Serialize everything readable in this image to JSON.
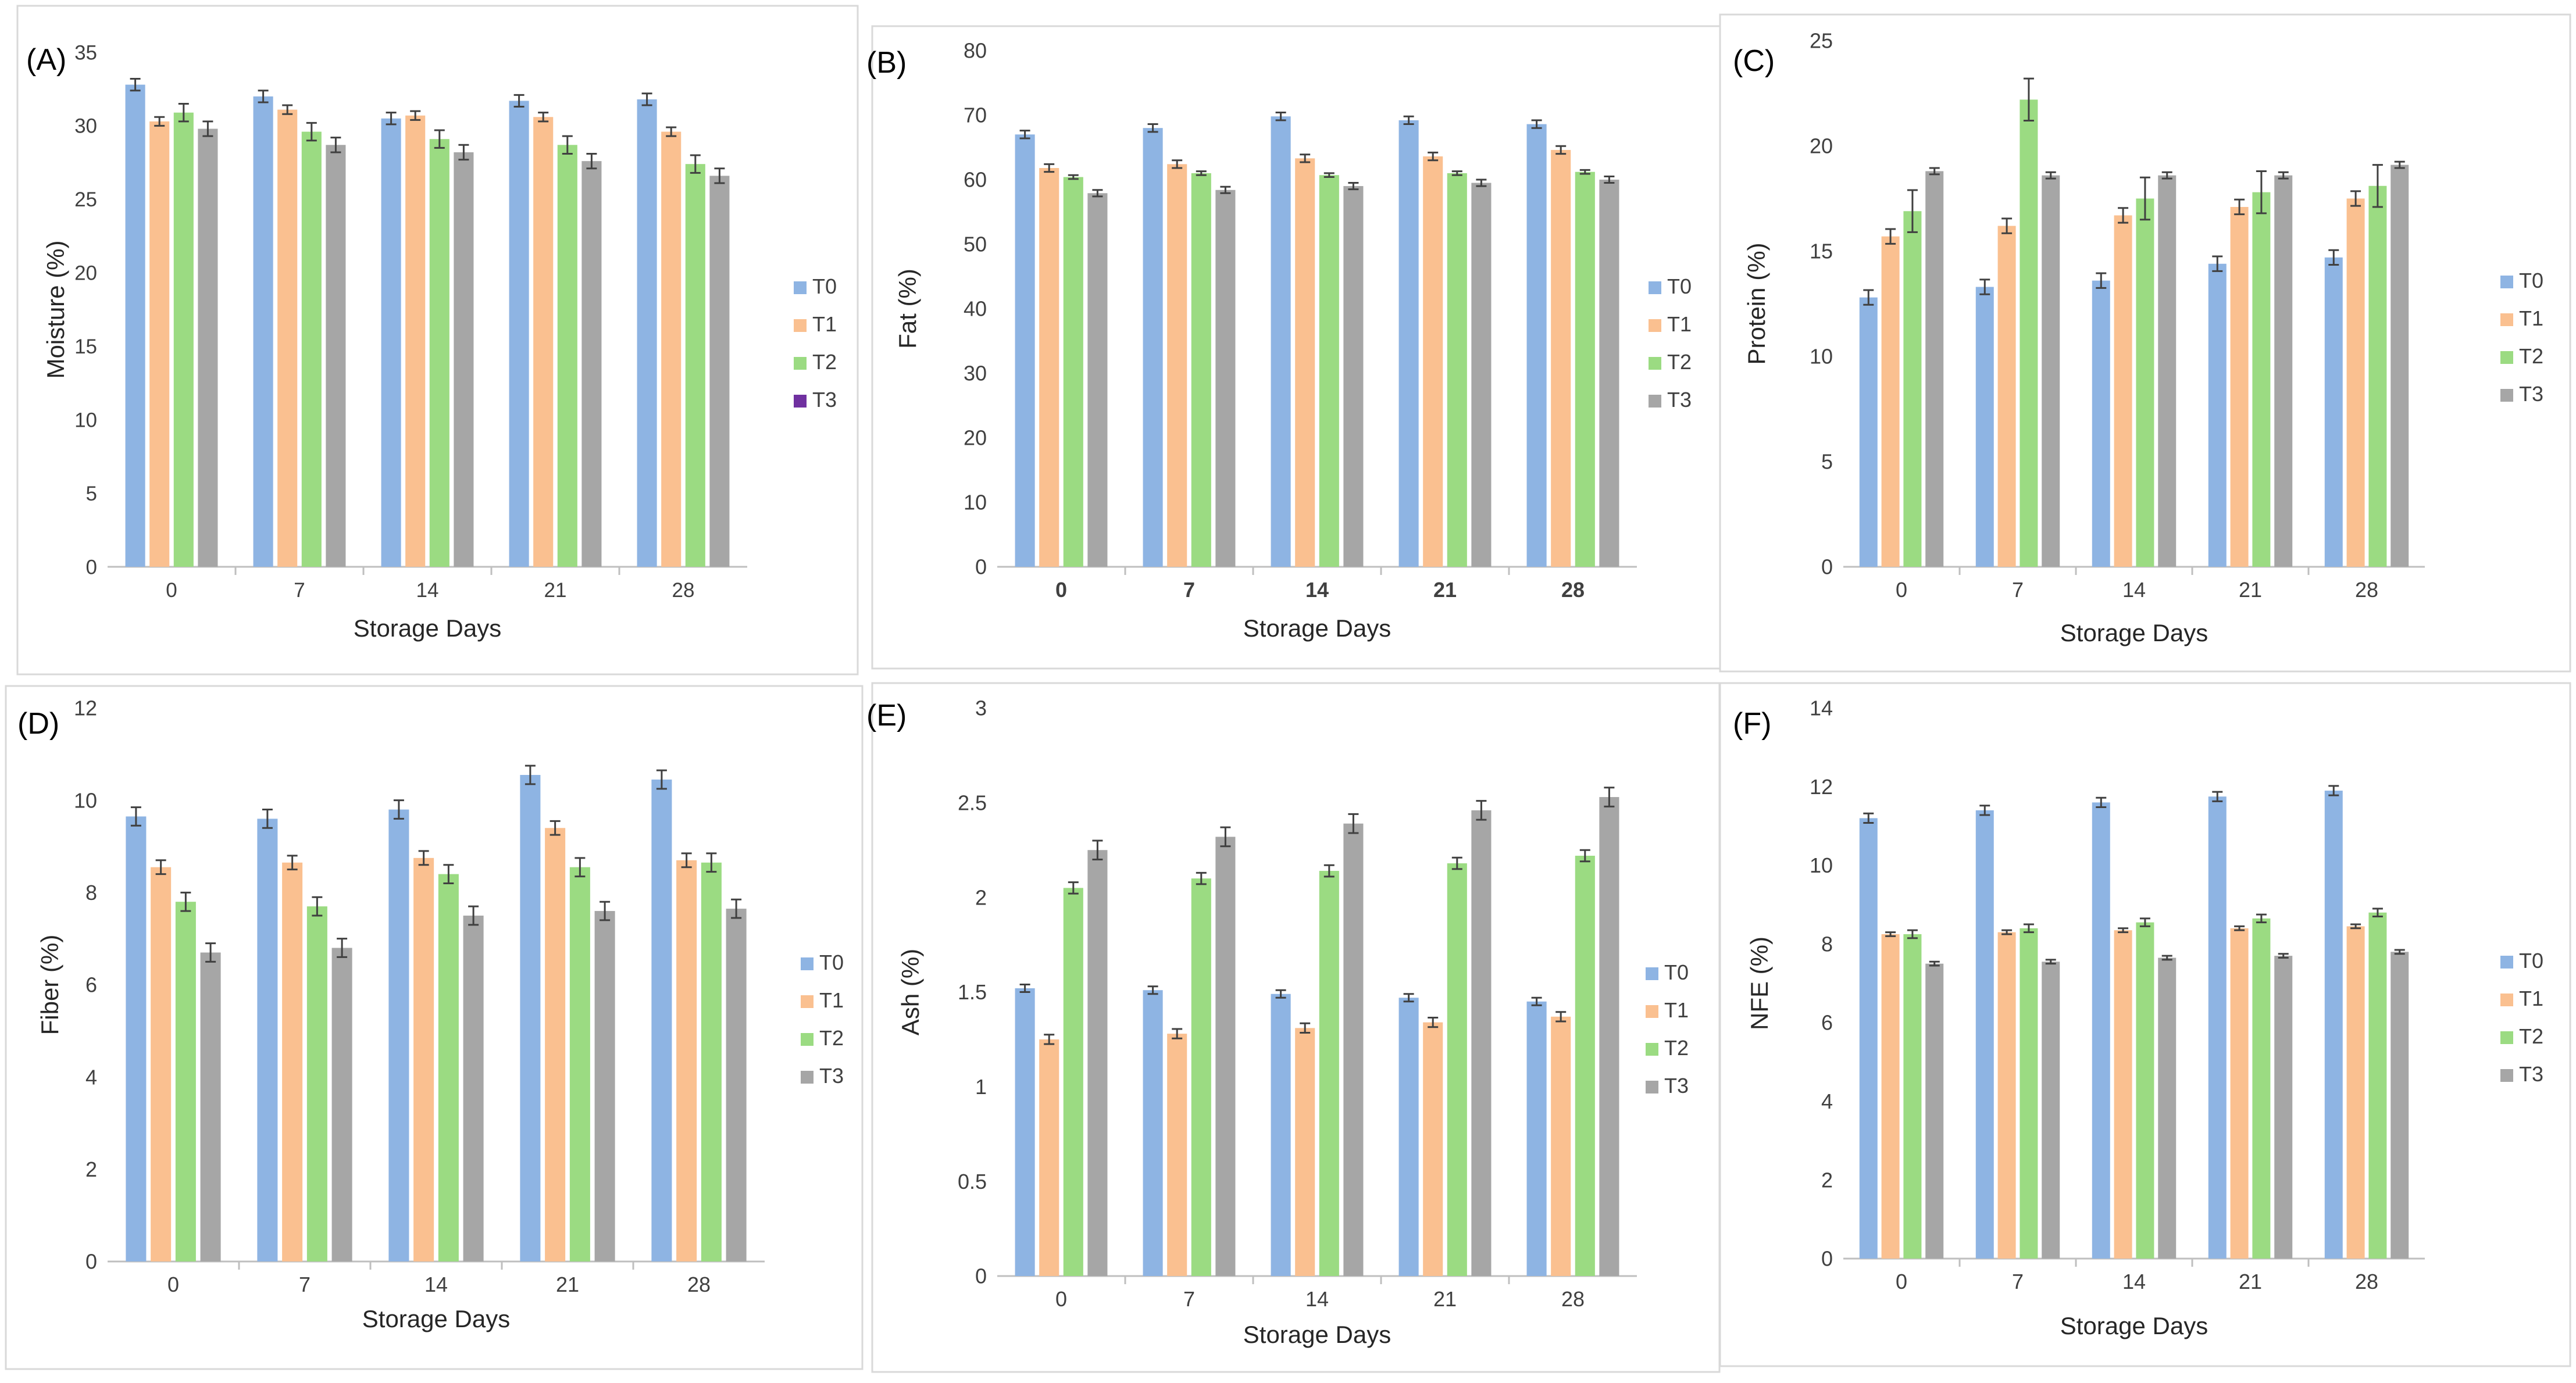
{
  "series_colors": {
    "T0": "#8eb4e3",
    "T1": "#fac090",
    "T2": "#9bdb82",
    "T3": "#a6a6a6",
    "T3_legend_A": "#7030a0"
  },
  "chart_data": [
    {
      "type": "bar",
      "panel_label": "(A)",
      "xlabel": "Storage Days",
      "ylabel": "Moisture (%)",
      "categories": [
        "0",
        "7",
        "14",
        "21",
        "28"
      ],
      "ylim": [
        0,
        35
      ],
      "yticks": [
        "0",
        "5",
        "10",
        "15",
        "20",
        "25",
        "30",
        "35"
      ],
      "tick_font": "serif",
      "legend_position": "right",
      "legend": [
        "T0",
        "T1",
        "T2",
        "T3"
      ],
      "series": [
        {
          "name": "T0",
          "values": [
            32.8,
            32.0,
            30.5,
            31.7,
            31.8
          ],
          "errors": [
            0.4,
            0.4,
            0.4,
            0.4,
            0.4
          ]
        },
        {
          "name": "T1",
          "values": [
            30.3,
            31.1,
            30.7,
            30.6,
            29.6
          ],
          "errors": [
            0.3,
            0.3,
            0.3,
            0.3,
            0.3
          ]
        },
        {
          "name": "T2",
          "values": [
            30.9,
            29.6,
            29.1,
            28.7,
            27.4
          ],
          "errors": [
            0.6,
            0.6,
            0.6,
            0.6,
            0.6
          ]
        },
        {
          "name": "T3",
          "values": [
            29.8,
            28.7,
            28.2,
            27.6,
            26.6
          ],
          "errors": [
            0.5,
            0.5,
            0.5,
            0.5,
            0.5
          ]
        }
      ]
    },
    {
      "type": "bar",
      "panel_label": "(B)",
      "xlabel": "Storage Days",
      "ylabel": "Fat (%)",
      "categories": [
        "0",
        "7",
        "14",
        "21",
        "28"
      ],
      "ylim": [
        0,
        80
      ],
      "yticks": [
        "0",
        "10",
        "20",
        "30",
        "40",
        "50",
        "60",
        "70",
        "80"
      ],
      "tick_font": "serif-bold-x",
      "legend_position": "right",
      "legend": [
        "T0",
        "T1",
        "T2",
        "T3"
      ],
      "series": [
        {
          "name": "T0",
          "values": [
            67.0,
            68.0,
            69.8,
            69.2,
            68.6
          ],
          "errors": [
            0.6,
            0.6,
            0.6,
            0.6,
            0.6
          ]
        },
        {
          "name": "T1",
          "values": [
            61.8,
            62.4,
            63.3,
            63.6,
            64.6
          ],
          "errors": [
            0.6,
            0.6,
            0.6,
            0.6,
            0.6
          ]
        },
        {
          "name": "T2",
          "values": [
            60.4,
            61.0,
            60.7,
            61.0,
            61.2
          ],
          "errors": [
            0.3,
            0.3,
            0.3,
            0.3,
            0.3
          ]
        },
        {
          "name": "T3",
          "values": [
            57.9,
            58.4,
            59.0,
            59.5,
            60.0
          ],
          "errors": [
            0.5,
            0.5,
            0.5,
            0.5,
            0.5
          ]
        }
      ]
    },
    {
      "type": "bar",
      "panel_label": "(C)",
      "xlabel": "Storage Days",
      "ylabel": "Protein (%)",
      "categories": [
        "0",
        "7",
        "14",
        "21",
        "28"
      ],
      "ylim": [
        0,
        25
      ],
      "yticks": [
        "0",
        "5",
        "10",
        "15",
        "20",
        "25"
      ],
      "tick_font": "sans",
      "legend_position": "right",
      "legend": [
        "T0",
        "T1",
        "T2",
        "T3"
      ],
      "series": [
        {
          "name": "T0",
          "values": [
            12.8,
            13.3,
            13.6,
            14.4,
            14.7
          ],
          "errors": [
            0.35,
            0.35,
            0.35,
            0.35,
            0.35
          ]
        },
        {
          "name": "T1",
          "values": [
            15.7,
            16.2,
            16.7,
            17.1,
            17.5
          ],
          "errors": [
            0.35,
            0.35,
            0.35,
            0.35,
            0.35
          ]
        },
        {
          "name": "T2",
          "values": [
            16.9,
            22.2,
            17.5,
            17.8,
            18.1
          ],
          "errors": [
            1.0,
            1.0,
            1.0,
            1.0,
            1.0
          ]
        },
        {
          "name": "T3",
          "values": [
            18.8,
            18.6,
            18.6,
            18.6,
            19.1
          ],
          "errors": [
            0.15,
            0.15,
            0.15,
            0.15,
            0.15
          ]
        }
      ]
    },
    {
      "type": "bar",
      "panel_label": "(D)",
      "xlabel": "Storage Days",
      "ylabel": "Fiber (%)",
      "categories": [
        "0",
        "7",
        "14",
        "21",
        "28"
      ],
      "ylim": [
        0,
        12
      ],
      "yticks": [
        "0",
        "2",
        "4",
        "6",
        "8",
        "10",
        "12"
      ],
      "tick_font": "sans",
      "legend_position": "right",
      "legend": [
        "T0",
        "T1",
        "T2",
        "T3"
      ],
      "series": [
        {
          "name": "T0",
          "values": [
            9.65,
            9.6,
            9.8,
            10.55,
            10.45
          ],
          "errors": [
            0.2,
            0.2,
            0.2,
            0.2,
            0.2
          ]
        },
        {
          "name": "T1",
          "values": [
            8.55,
            8.65,
            8.75,
            9.4,
            8.7
          ],
          "errors": [
            0.15,
            0.15,
            0.15,
            0.15,
            0.15
          ]
        },
        {
          "name": "T2",
          "values": [
            7.8,
            7.7,
            8.4,
            8.55,
            8.65
          ],
          "errors": [
            0.2,
            0.2,
            0.2,
            0.2,
            0.2
          ]
        },
        {
          "name": "T3",
          "values": [
            6.7,
            6.8,
            7.5,
            7.6,
            7.65
          ],
          "errors": [
            0.2,
            0.2,
            0.2,
            0.2,
            0.2
          ]
        }
      ]
    },
    {
      "type": "bar",
      "panel_label": "(E)",
      "xlabel": "Storage Days",
      "ylabel": "Ash (%)",
      "categories": [
        "0",
        "7",
        "14",
        "21",
        "28"
      ],
      "ylim": [
        0,
        3
      ],
      "yticks": [
        "0",
        "0.5",
        "1",
        "1.5",
        "2",
        "2.5",
        "3"
      ],
      "tick_font": "sans",
      "legend_position": "right",
      "legend": [
        "T0",
        "T1",
        "T2",
        "T3"
      ],
      "series": [
        {
          "name": "T0",
          "values": [
            1.52,
            1.51,
            1.49,
            1.47,
            1.45
          ],
          "errors": [
            0.02,
            0.02,
            0.02,
            0.02,
            0.02
          ]
        },
        {
          "name": "T1",
          "values": [
            1.25,
            1.28,
            1.31,
            1.34,
            1.37
          ],
          "errors": [
            0.025,
            0.025,
            0.025,
            0.025,
            0.025
          ]
        },
        {
          "name": "T2",
          "values": [
            2.05,
            2.1,
            2.14,
            2.18,
            2.22
          ],
          "errors": [
            0.03,
            0.03,
            0.03,
            0.03,
            0.03
          ]
        },
        {
          "name": "T3",
          "values": [
            2.25,
            2.32,
            2.39,
            2.46,
            2.53
          ],
          "errors": [
            0.05,
            0.05,
            0.05,
            0.05,
            0.05
          ]
        }
      ]
    },
    {
      "type": "bar",
      "panel_label": "(F)",
      "xlabel": "Storage Days",
      "ylabel": "NFE (%)",
      "categories": [
        "0",
        "7",
        "14",
        "21",
        "28"
      ],
      "ylim": [
        0,
        14
      ],
      "yticks": [
        "0",
        "2",
        "4",
        "6",
        "8",
        "10",
        "12",
        "14"
      ],
      "tick_font": "sans",
      "legend_position": "right",
      "legend": [
        "T0",
        "T1",
        "T2",
        "T3"
      ],
      "series": [
        {
          "name": "T0",
          "values": [
            11.2,
            11.4,
            11.6,
            11.75,
            11.9
          ],
          "errors": [
            0.12,
            0.12,
            0.12,
            0.12,
            0.12
          ]
        },
        {
          "name": "T1",
          "values": [
            8.25,
            8.3,
            8.35,
            8.4,
            8.45
          ],
          "errors": [
            0.05,
            0.05,
            0.05,
            0.05,
            0.05
          ]
        },
        {
          "name": "T2",
          "values": [
            8.25,
            8.4,
            8.55,
            8.65,
            8.8
          ],
          "errors": [
            0.1,
            0.1,
            0.1,
            0.1,
            0.1
          ]
        },
        {
          "name": "T3",
          "values": [
            7.5,
            7.55,
            7.65,
            7.7,
            7.8
          ],
          "errors": [
            0.05,
            0.05,
            0.05,
            0.05,
            0.05
          ]
        }
      ]
    }
  ]
}
